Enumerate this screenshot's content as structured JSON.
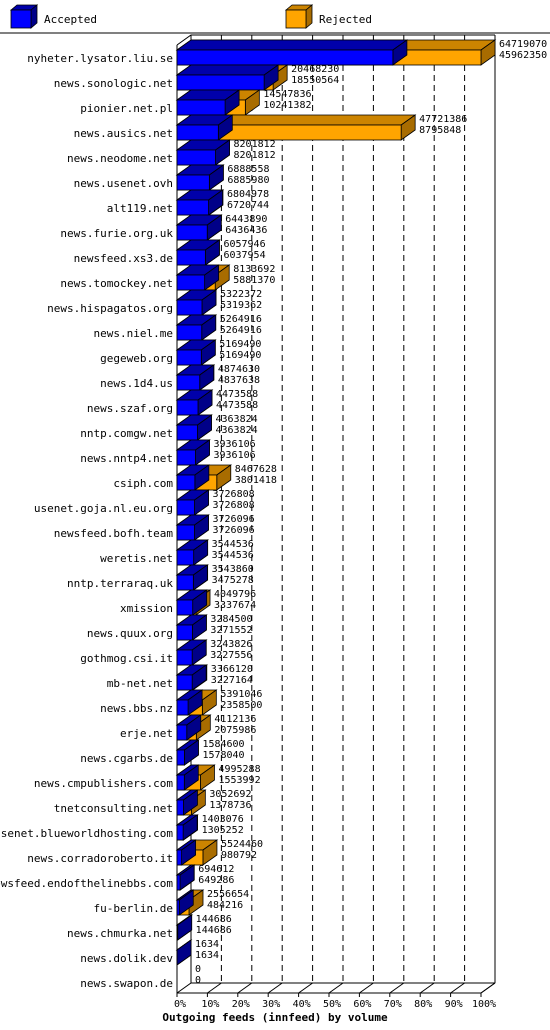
{
  "chart_data": {
    "type": "bar",
    "title": "Outgoing feeds (innfeed) by volume",
    "legend_position": "top",
    "xlim": [
      0,
      100
    ],
    "x_ticks": [
      "0%",
      "10%",
      "20%",
      "30%",
      "40%",
      "50%",
      "60%",
      "70%",
      "80%",
      "90%",
      "100%"
    ],
    "colors": {
      "accepted": "#0000ff",
      "rejected": "#ffa500"
    },
    "series": [
      {
        "name": "Accepted",
        "color": "#0000ff"
      },
      {
        "name": "Rejected",
        "color": "#ffa500"
      }
    ],
    "categories": [
      "nyheter.lysator.liu.se",
      "news.sonologic.net",
      "pionier.net.pl",
      "news.ausics.net",
      "news.neodome.net",
      "news.usenet.ovh",
      "alt119.net",
      "news.furie.org.uk",
      "newsfeed.xs3.de",
      "news.tomockey.net",
      "news.hispagatos.org",
      "news.niel.me",
      "gegeweb.org",
      "news.1d4.us",
      "news.szaf.org",
      "nntp.comgw.net",
      "news.nntp4.net",
      "csiph.com",
      "usenet.goja.nl.eu.org",
      "newsfeed.bofh.team",
      "weretis.net",
      "nntp.terraraq.uk",
      "xmission",
      "news.quux.org",
      "gothmog.csi.it",
      "mb-net.net",
      "news.bbs.nz",
      "erje.net",
      "news.cgarbs.de",
      "news.cmpublishers.com",
      "tnetconsulting.net",
      "usenet.blueworldhosting.com",
      "news.corradoroberto.it",
      "newsfeed.endofthelinebbs.com",
      "fu-berlin.de",
      "news.chmurka.net",
      "news.dolik.dev",
      "news.swapon.de"
    ],
    "offered": [
      64719070,
      20468230,
      14547836,
      47721386,
      8201812,
      6888558,
      6804978,
      6443890,
      6057946,
      8133692,
      5322372,
      5264916,
      5169490,
      4874630,
      4473588,
      4363824,
      3936106,
      8467628,
      3726808,
      3726096,
      3544536,
      3543860,
      4049796,
      3284500,
      3243826,
      3366120,
      5391046,
      4112136,
      1584600,
      4995288,
      3052692,
      1403076,
      5524460,
      694612,
      2556654,
      144686,
      1634,
      0
    ],
    "accepted": [
      45962350,
      18550564,
      10241382,
      8795848,
      8201812,
      6885980,
      6720744,
      6436436,
      6037954,
      5881370,
      5319362,
      5264916,
      5169490,
      4837638,
      4473588,
      4363824,
      3936106,
      3801418,
      3726808,
      3726096,
      3544536,
      3475278,
      3337674,
      3271552,
      3227556,
      3227164,
      2358500,
      2075986,
      1578040,
      1553992,
      1378736,
      1305252,
      980792,
      649286,
      484216,
      144686,
      1634,
      0
    ]
  }
}
